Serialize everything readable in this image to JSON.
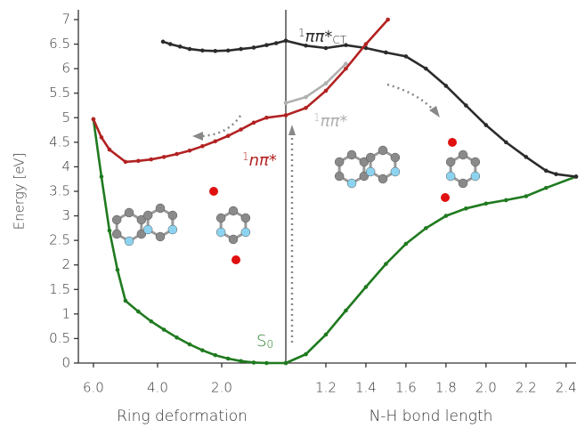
{
  "chart_data": {
    "type": "line",
    "ylabel": "Energy [eV]",
    "ylim": [
      0,
      7.2
    ],
    "yticks": [
      0,
      0.5,
      1,
      1.5,
      2,
      2.5,
      3,
      3.5,
      4,
      4.5,
      5,
      5.5,
      6,
      6.5,
      7
    ],
    "panels": [
      {
        "xlabel": "Ring deformation",
        "xlim": [
          6.47,
          0
        ],
        "xticks": [
          {
            "value": 6,
            "label": "6.0"
          },
          {
            "value": 4,
            "label": "4.0"
          },
          {
            "value": 2,
            "label": "2.0"
          }
        ],
        "series": [
          {
            "color": "#1f7a1f",
            "x": [
              6.0,
              5.75,
              5.5,
              5.25,
              5.0,
              4.6,
              4.2,
              3.8,
              3.4,
              3.0,
              2.6,
              2.2,
              1.8,
              1.4,
              1.0,
              0.6,
              0
            ],
            "values": [
              4.97,
              3.8,
              2.7,
              1.9,
              1.27,
              1.05,
              0.85,
              0.68,
              0.52,
              0.38,
              0.26,
              0.16,
              0.09,
              0.04,
              0.01,
              0.0,
              0
            ]
          },
          {
            "color": "#b22222",
            "x": [
              6.0,
              5.75,
              5.5,
              5.0,
              4.6,
              4.2,
              3.8,
              3.4,
              3.0,
              2.6,
              2.2,
              1.8,
              1.4,
              1.0,
              0.6,
              0
            ],
            "values": [
              4.97,
              4.6,
              4.35,
              4.1,
              4.12,
              4.15,
              4.2,
              4.26,
              4.33,
              4.42,
              4.52,
              4.63,
              4.76,
              4.9,
              5.0,
              5.05
            ]
          },
          {
            "color": "#2b2b2b",
            "x": [
              3.83,
              3.6,
              3.3,
              3.0,
              2.6,
              2.2,
              1.8,
              1.4,
              1.0,
              0.6,
              0.3,
              0
            ],
            "values": [
              6.55,
              6.5,
              6.45,
              6.4,
              6.37,
              6.36,
              6.37,
              6.4,
              6.43,
              6.48,
              6.52,
              6.57
            ]
          }
        ]
      },
      {
        "xlabel": "N-H bond length",
        "xlim": [
          1.0,
          2.45
        ],
        "xticks": [
          1.2,
          1.4,
          1.6,
          1.8,
          {
            "value": 2,
            "label": "2.0"
          },
          2.2,
          2.4
        ],
        "series": [
          {
            "color": "#1f7a1f",
            "x": [
              1.0,
              1.1,
              1.2,
              1.3,
              1.4,
              1.5,
              1.6,
              1.7,
              1.8,
              1.9,
              2.0,
              2.1,
              2.2,
              2.3,
              2.45
            ],
            "values": [
              0,
              0.18,
              0.58,
              1.07,
              1.55,
              2.02,
              2.43,
              2.75,
              3.0,
              3.15,
              3.25,
              3.32,
              3.4,
              3.57,
              3.8
            ]
          },
          {
            "color": "#2b2b2b",
            "x": [
              1.0,
              1.1,
              1.2,
              1.3,
              1.4,
              1.5,
              1.6,
              1.7,
              1.8,
              1.9,
              2.0,
              2.1,
              2.2,
              2.3,
              2.35,
              2.45
            ],
            "values": [
              6.57,
              6.47,
              6.42,
              6.48,
              6.42,
              6.33,
              6.25,
              6.0,
              5.65,
              5.25,
              4.85,
              4.5,
              4.2,
              3.92,
              3.85,
              3.8
            ]
          },
          {
            "color": "#b0b0b0",
            "x": [
              1.0,
              1.1,
              1.2,
              1.3
            ],
            "values": [
              5.3,
              5.42,
              5.7,
              6.1
            ]
          },
          {
            "color": "#b22222",
            "x": [
              1.0,
              1.1,
              1.2,
              1.3,
              1.4,
              1.51
            ],
            "values": [
              5.05,
              5.2,
              5.55,
              6.0,
              6.5,
              7.0
            ]
          }
        ]
      }
    ],
    "annotations": [
      {
        "pre": "1",
        "text": "ππ*",
        "sub": "CT",
        "color": "#2b2b2b"
      },
      {
        "pre": "1",
        "text": "ππ*",
        "color": "#b0b0b0"
      },
      {
        "pre": "1",
        "text": "nπ*",
        "color": "#b22222"
      },
      {
        "text": "S",
        "sub": "0",
        "color": "#1f7a1f"
      }
    ]
  }
}
